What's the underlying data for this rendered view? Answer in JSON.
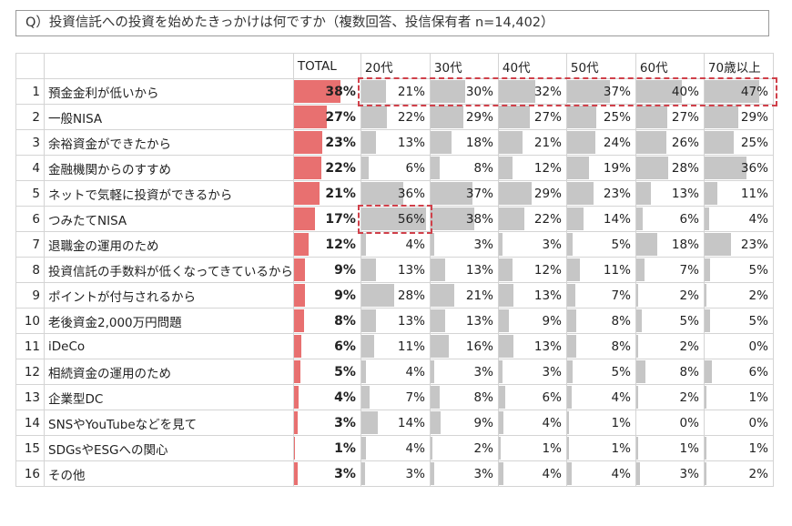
{
  "title": "Q）投資信託への投資を始めたきっかけは何ですか（複数回答、投信保有者 n=14,402）",
  "colors": {
    "total_bar": "#e87070",
    "age_bar": "#c6c6c6",
    "highlight": "#d0404a",
    "grid": "#d4d4d4"
  },
  "headers": [
    "",
    "",
    "TOTAL",
    "20代",
    "30代",
    "40代",
    "50代",
    "60代",
    "70歳以上"
  ],
  "rows": [
    {
      "no": "1",
      "label": "預金金利が低いから",
      "total": "38%",
      "ages": [
        "21%",
        "30%",
        "32%",
        "37%",
        "40%",
        "47%"
      ]
    },
    {
      "no": "2",
      "label": "一般NISA",
      "total": "27%",
      "ages": [
        "22%",
        "29%",
        "27%",
        "25%",
        "27%",
        "29%"
      ]
    },
    {
      "no": "3",
      "label": "余裕資金ができたから",
      "total": "23%",
      "ages": [
        "13%",
        "18%",
        "21%",
        "24%",
        "26%",
        "25%"
      ]
    },
    {
      "no": "4",
      "label": "金融機関からのすすめ",
      "total": "22%",
      "ages": [
        "6%",
        "8%",
        "12%",
        "19%",
        "28%",
        "36%"
      ]
    },
    {
      "no": "5",
      "label": "ネットで気軽に投資ができるから",
      "total": "21%",
      "ages": [
        "36%",
        "37%",
        "29%",
        "23%",
        "13%",
        "11%"
      ]
    },
    {
      "no": "6",
      "label": "つみたてNISA",
      "total": "17%",
      "ages": [
        "56%",
        "38%",
        "22%",
        "14%",
        "6%",
        "4%"
      ]
    },
    {
      "no": "7",
      "label": "退職金の運用のため",
      "total": "12%",
      "ages": [
        "4%",
        "3%",
        "3%",
        "5%",
        "18%",
        "23%"
      ]
    },
    {
      "no": "8",
      "label": "投資信託の手数料が低くなってきているから",
      "total": "9%",
      "ages": [
        "13%",
        "13%",
        "12%",
        "11%",
        "7%",
        "5%"
      ]
    },
    {
      "no": "9",
      "label": "ポイントが付与されるから",
      "total": "9%",
      "ages": [
        "28%",
        "21%",
        "13%",
        "7%",
        "2%",
        "2%"
      ]
    },
    {
      "no": "10",
      "label": "老後資金2,000万円問題",
      "total": "8%",
      "ages": [
        "13%",
        "13%",
        "9%",
        "8%",
        "5%",
        "5%"
      ]
    },
    {
      "no": "11",
      "label": "iDeCo",
      "total": "6%",
      "ages": [
        "11%",
        "16%",
        "13%",
        "8%",
        "2%",
        "0%"
      ]
    },
    {
      "no": "12",
      "label": "相続資金の運用のため",
      "total": "5%",
      "ages": [
        "4%",
        "3%",
        "3%",
        "5%",
        "8%",
        "6%"
      ]
    },
    {
      "no": "13",
      "label": "企業型DC",
      "total": "4%",
      "ages": [
        "7%",
        "8%",
        "6%",
        "4%",
        "2%",
        "1%"
      ]
    },
    {
      "no": "14",
      "label": "SNSやYouTubeなどを見て",
      "total": "3%",
      "ages": [
        "14%",
        "9%",
        "4%",
        "1%",
        "0%",
        "0%"
      ]
    },
    {
      "no": "15",
      "label": "SDGsやESGへの関心",
      "total": "1%",
      "ages": [
        "4%",
        "2%",
        "1%",
        "1%",
        "1%",
        "1%"
      ]
    },
    {
      "no": "16",
      "label": "その他",
      "total": "3%",
      "ages": [
        "3%",
        "3%",
        "4%",
        "4%",
        "3%",
        "2%"
      ]
    }
  ],
  "highlights": [
    {
      "row": 1,
      "from_col": "20代",
      "to_col": "70歳以上"
    },
    {
      "row": 6,
      "from_col": "20代",
      "to_col": "20代"
    }
  ],
  "chart_data": {
    "type": "table",
    "title": "Q）投資信託への投資を始めたきっかけは何ですか（複数回答、投信保有者 n=14,402）",
    "columns": [
      "TOTAL",
      "20代",
      "30代",
      "40代",
      "50代",
      "60代",
      "70歳以上"
    ],
    "categories": [
      "預金金利が低いから",
      "一般NISA",
      "余裕資金ができたから",
      "金融機関からのすすめ",
      "ネットで気軽に投資ができるから",
      "つみたてNISA",
      "退職金の運用のため",
      "投資信託の手数料が低くなってきているから",
      "ポイントが付与されるから",
      "老後資金2,000万円問題",
      "iDeCo",
      "相続資金の運用のため",
      "企業型DC",
      "SNSやYouTubeなどを見て",
      "SDGsやESGへの関心",
      "その他"
    ],
    "series": [
      {
        "name": "TOTAL",
        "values": [
          38,
          27,
          23,
          22,
          21,
          17,
          12,
          9,
          9,
          8,
          6,
          5,
          4,
          3,
          1,
          3
        ]
      },
      {
        "name": "20代",
        "values": [
          21,
          22,
          13,
          6,
          36,
          56,
          4,
          13,
          28,
          13,
          11,
          4,
          7,
          14,
          4,
          3
        ]
      },
      {
        "name": "30代",
        "values": [
          30,
          29,
          18,
          8,
          37,
          38,
          3,
          13,
          21,
          13,
          16,
          3,
          8,
          9,
          2,
          3
        ]
      },
      {
        "name": "40代",
        "values": [
          32,
          27,
          21,
          12,
          29,
          22,
          3,
          12,
          13,
          9,
          13,
          3,
          6,
          4,
          1,
          4
        ]
      },
      {
        "name": "50代",
        "values": [
          37,
          25,
          24,
          19,
          23,
          14,
          5,
          11,
          7,
          8,
          8,
          5,
          4,
          1,
          1,
          4
        ]
      },
      {
        "name": "60代",
        "values": [
          40,
          27,
          26,
          28,
          13,
          6,
          18,
          7,
          2,
          5,
          2,
          8,
          2,
          0,
          1,
          3
        ]
      },
      {
        "name": "70歳以上",
        "values": [
          47,
          29,
          25,
          36,
          11,
          4,
          23,
          5,
          2,
          5,
          0,
          6,
          1,
          0,
          1,
          2
        ]
      }
    ],
    "unit": "%",
    "bar_scale_max": 100
  }
}
